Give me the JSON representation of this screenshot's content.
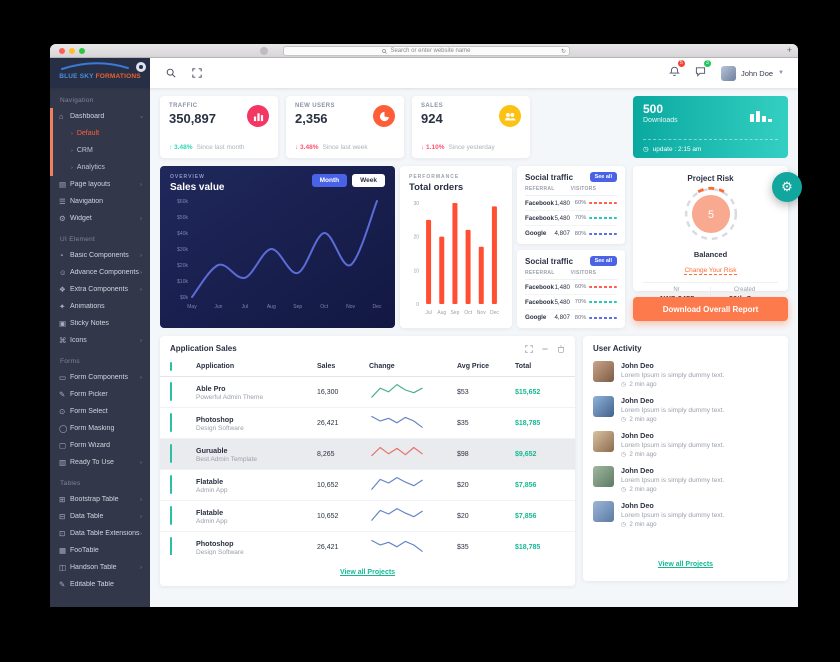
{
  "browser": {
    "address_placeholder": "Search or enter website name",
    "new_tab": "+"
  },
  "brand": {
    "name_blue": "BLUE SKY",
    "name_orange": "FORMATIONS"
  },
  "topbar": {
    "user_name": "John Doe",
    "notification_count": "5",
    "message_count": "3"
  },
  "sidebar": {
    "sections": [
      {
        "label": "Navigation",
        "items": [
          {
            "label": "Dashboard",
            "icon": "home",
            "active": true,
            "expanded": true,
            "children": [
              {
                "label": "Default",
                "selected": true
              },
              {
                "label": "CRM"
              },
              {
                "label": "Analytics"
              }
            ]
          },
          {
            "label": "Page layouts",
            "icon": "layout",
            "arrow": true
          },
          {
            "label": "Navigation",
            "icon": "menu"
          },
          {
            "label": "Widget",
            "icon": "gear",
            "arrow": true
          }
        ]
      },
      {
        "label": "UI Element",
        "items": [
          {
            "label": "Basic Components",
            "icon": "basic",
            "arrow": true
          },
          {
            "label": "Advance Components",
            "icon": "advance",
            "arrow": true
          },
          {
            "label": "Extra Components",
            "icon": "extra",
            "arrow": true
          },
          {
            "label": "Animations",
            "icon": "animations"
          },
          {
            "label": "Sticky Notes",
            "icon": "notes"
          },
          {
            "label": "Icons",
            "icon": "icons",
            "arrow": true
          }
        ]
      },
      {
        "label": "Forms",
        "items": [
          {
            "label": "Form Components",
            "icon": "form",
            "arrow": true
          },
          {
            "label": "Form Picker",
            "icon": "picker"
          },
          {
            "label": "Form Select",
            "icon": "select"
          },
          {
            "label": "Form Masking",
            "icon": "masking"
          },
          {
            "label": "Form Wizard",
            "icon": "wizard"
          },
          {
            "label": "Ready To Use",
            "icon": "ready",
            "arrow": true
          }
        ]
      },
      {
        "label": "Tables",
        "items": [
          {
            "label": "Bootstrap Table",
            "icon": "btable",
            "arrow": true
          },
          {
            "label": "Data Table",
            "icon": "dtable",
            "arrow": true
          },
          {
            "label": "Data Table Extensions",
            "icon": "dtext",
            "arrow": true
          },
          {
            "label": "FooTable",
            "icon": "footable"
          },
          {
            "label": "Handson Table",
            "icon": "handson",
            "arrow": true
          },
          {
            "label": "Editable Table",
            "icon": "editable"
          }
        ]
      }
    ]
  },
  "stats": [
    {
      "label": "TRAFFIC",
      "value": "350,897",
      "delta": "3.48%",
      "dir": "up",
      "note": "Since last month",
      "icon": "bar-chart",
      "color": "#f43662"
    },
    {
      "label": "NEW USERS",
      "value": "2,356",
      "delta": "3.48%",
      "dir": "down",
      "note": "Since last week",
      "icon": "pie-chart",
      "color": "#ff5d38"
    },
    {
      "label": "SALES",
      "value": "924",
      "delta": "1.10%",
      "dir": "down",
      "note": "Since yesterday",
      "icon": "users",
      "color": "#fdc112"
    }
  ],
  "downloads": {
    "value": "500",
    "label": "Downloads",
    "update_text": "update : 2:15 am"
  },
  "chart_data": [
    {
      "type": "line",
      "subtitle": "OVERVIEW",
      "title": "Sales value",
      "buttons": [
        "Month",
        "Week"
      ],
      "x": [
        "May",
        "Jun",
        "Jul",
        "Aug",
        "Sep",
        "Oct",
        "Nov",
        "Dec"
      ],
      "values_thousands": [
        0,
        20,
        12,
        30,
        15,
        40,
        20,
        60
      ],
      "ylabels": [
        "$0k",
        "$10k",
        "$20k",
        "$30k",
        "$40k",
        "$50k",
        "$60k"
      ],
      "ylim": [
        0,
        60
      ],
      "line_color": "#6374e8",
      "grid": false,
      "legend": "none"
    },
    {
      "type": "bar",
      "subtitle": "PERFORMANCE",
      "title": "Total orders",
      "categories": [
        "Jul",
        "Aug",
        "Sep",
        "Oct",
        "Nov",
        "Dec"
      ],
      "values": [
        25,
        20,
        30,
        22,
        17,
        29
      ],
      "yticks": [
        0,
        10,
        20,
        30
      ],
      "ylim": [
        0,
        30
      ],
      "bar_color": "#ff4e31",
      "grid": false,
      "legend": "none"
    }
  ],
  "social": {
    "title": "Social traffic",
    "see_all": "See all",
    "referral_col": "REFERRAL",
    "visitors_col": "VISITORS",
    "rows": [
      {
        "name": "Facebook",
        "visitors": "1,480",
        "pct": "60%",
        "pct_value": 60,
        "color": "#ff5f4c"
      },
      {
        "name": "Facebook",
        "visitors": "5,480",
        "pct": "70%",
        "pct_value": 70,
        "color": "#2bc5b7"
      },
      {
        "name": "Google",
        "visitors": "4,807",
        "pct": "80%",
        "pct_value": 80,
        "color": "#5b6fe6"
      }
    ],
    "card_count": 2
  },
  "project_risk": {
    "title": "Project Risk",
    "gauge_value": "5",
    "status": "Balanced",
    "link": "Change Your Risk",
    "nr_label": "Nr",
    "nr_value": "AWS 2455",
    "created_label": "Created",
    "created_value": "30th Sep",
    "button": "Download Overall Report"
  },
  "app_sales": {
    "title": "Application Sales",
    "columns": [
      "Application",
      "Sales",
      "Change",
      "Avg Price",
      "Total"
    ],
    "rows": [
      {
        "name": "Able Pro",
        "desc": "Powerful Admin Theme",
        "sales": "16,300",
        "avg": "$53",
        "total": "$15,652",
        "spark_color": "#4caf8e",
        "spark": [
          18,
          8,
          12,
          4,
          10,
          13,
          8
        ]
      },
      {
        "name": "Photoshop",
        "desc": "Design Software",
        "sales": "26,421",
        "avg": "$35",
        "total": "$18,785",
        "spark_color": "#6584c5",
        "spark": [
          5,
          10,
          7,
          12,
          6,
          10,
          17
        ]
      },
      {
        "name": "Guruable",
        "desc": "Best Admin Template",
        "sales": "8,265",
        "avg": "$98",
        "total": "$9,652",
        "spark_color": "#e57368",
        "spark": [
          14,
          5,
          12,
          6,
          13,
          5,
          12
        ],
        "highlighted": true
      },
      {
        "name": "Flatable",
        "desc": "Admin App",
        "sales": "10,652",
        "avg": "$20",
        "total": "$7,856",
        "spark_color": "#6584c5",
        "spark": [
          17,
          6,
          10,
          4,
          9,
          13,
          7
        ]
      },
      {
        "name": "Flatable",
        "desc": "Admin App",
        "sales": "10,652",
        "avg": "$20",
        "total": "$7,856",
        "spark_color": "#6584c5",
        "spark": [
          17,
          6,
          10,
          4,
          9,
          13,
          7
        ]
      },
      {
        "name": "Photoshop",
        "desc": "Design Software",
        "sales": "26,421",
        "avg": "$35",
        "total": "$18,785",
        "spark_color": "#6584c5",
        "spark": [
          5,
          10,
          7,
          12,
          6,
          10,
          17
        ]
      }
    ],
    "footer_link": "View all Projects"
  },
  "activity": {
    "title": "User Activity",
    "items": [
      {
        "name": "John Deo",
        "text": "Lorem Ipsum is simply dummy text.",
        "time": "2 min ago"
      },
      {
        "name": "John Deo",
        "text": "Lorem Ipsum is simply dummy text.",
        "time": "2 min ago"
      },
      {
        "name": "John Deo",
        "text": "Lorem Ipsum is simply dummy text.",
        "time": "2 min ago"
      },
      {
        "name": "John Deo",
        "text": "Lorem Ipsum is simply dummy text.",
        "time": "2 min ago"
      },
      {
        "name": "John Deo",
        "text": "Lorem Ipsum is simply dummy text.",
        "time": "2 min ago"
      }
    ],
    "footer_link": "View all Projects"
  },
  "colors": {
    "accent_blue": "#4a63e6",
    "teal": "#16b894",
    "orange": "#fd7a4d",
    "up_green": "#2ed8b6",
    "down_red": "#ff5370"
  }
}
